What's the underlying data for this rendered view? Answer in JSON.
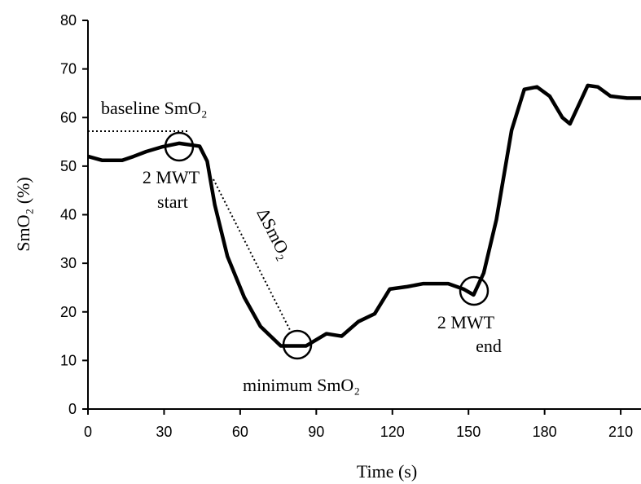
{
  "chart_data": {
    "type": "line",
    "x_label": "Time (s)",
    "y_label": "SmO₂ (%)",
    "xlim": [
      0,
      218
    ],
    "ylim": [
      0,
      80
    ],
    "xticks": [
      0,
      30,
      60,
      90,
      120,
      150,
      180,
      210
    ],
    "yticks": [
      0,
      10,
      20,
      30,
      40,
      50,
      60,
      70,
      80
    ],
    "annotations": {
      "baseline": "baseline SmO₂",
      "delta": "ΔSmO₂",
      "minimum": "minimum SmO₂",
      "start": [
        "2 MWT",
        "start"
      ],
      "end": [
        "2 MWT",
        "end"
      ]
    },
    "series": [
      {
        "color": "#000000",
        "x": [
          0,
          5.5,
          13.5,
          18,
          23,
          29.5,
          36,
          44,
          47,
          50,
          55,
          61.6,
          68,
          76,
          86,
          94,
          100,
          106.6,
          113,
          119,
          126,
          132,
          142,
          148,
          152,
          156,
          161,
          167,
          172,
          177,
          182,
          187,
          190,
          194,
          197,
          201,
          206,
          212.5,
          218
        ],
        "values": [
          52,
          51.2,
          51.2,
          52,
          53,
          54,
          54.7,
          54.1,
          51,
          42,
          31.4,
          23,
          17,
          13,
          13,
          15.5,
          15,
          18,
          19.6,
          24.7,
          25.2,
          25.8,
          25.8,
          24.7,
          23.5,
          28,
          39,
          57.4,
          65.8,
          66.3,
          64.4,
          60,
          58.7,
          63.2,
          66.6,
          66.3,
          64.4,
          64,
          64
        ]
      }
    ]
  }
}
